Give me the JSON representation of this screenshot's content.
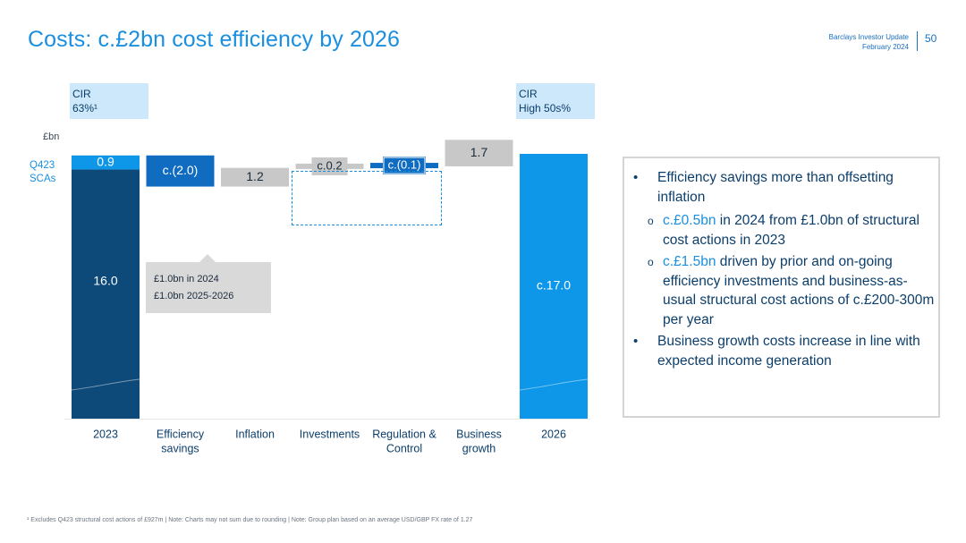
{
  "header": {
    "title": "Costs: c.£2bn cost efficiency by 2026",
    "report_name": "Barclays Investor Update",
    "report_date": "February 2024",
    "page_number": "50"
  },
  "cir_labels": {
    "left_line1": "CIR",
    "left_line2": "63%¹",
    "right_line1": "CIR",
    "right_line2": "High 50s%"
  },
  "unit_label": "£bn",
  "q423_label": [
    "Q423",
    "SCAs"
  ],
  "callout": {
    "line1": "£1.0bn in 2024",
    "line2": "£1.0bn 2025-2026"
  },
  "chart_data": {
    "type": "bar",
    "subtype": "waterfall",
    "unit": "£bn",
    "categories": [
      "2023",
      "Efficiency savings",
      "Inflation",
      "Investments",
      "Regulation & Control",
      "Business growth",
      "2026"
    ],
    "category_lines": [
      [
        "2023"
      ],
      [
        "Efficiency",
        "savings"
      ],
      [
        "Inflation"
      ],
      [
        "Investments"
      ],
      [
        "Regulation &",
        "Control"
      ],
      [
        "Business",
        "growth"
      ],
      [
        "2026"
      ]
    ],
    "bars": [
      {
        "category": "2023",
        "kind": "total",
        "segments": [
          {
            "label": "16.0",
            "value": 16.0,
            "color": "#0d4a7a"
          },
          {
            "label": "0.9",
            "value": 0.9,
            "color": "#0e97e8"
          }
        ]
      },
      {
        "category": "Efficiency savings",
        "kind": "delta",
        "label": "c.(2.0)",
        "value": -2.0,
        "color": "#0f6cc0"
      },
      {
        "category": "Inflation",
        "kind": "delta",
        "label": "1.2",
        "value": 1.2,
        "color": "#c8c8c8"
      },
      {
        "category": "Investments",
        "kind": "delta",
        "label": "c.0.2",
        "value": 0.2,
        "color": "#c8c8c8"
      },
      {
        "category": "Regulation & Control",
        "kind": "delta",
        "label": "c.(0.1)",
        "value": -0.1,
        "color": "#0f6cc0"
      },
      {
        "category": "Business growth",
        "kind": "delta",
        "label": "1.7",
        "value": 1.7,
        "color": "#c8c8c8"
      },
      {
        "category": "2026",
        "kind": "total",
        "segments": [
          {
            "label": "c.17.0",
            "value": 17.0,
            "color": "#0e97e8"
          }
        ]
      }
    ]
  },
  "commentary": {
    "bullet1": "Efficiency savings more than offsetting inflation",
    "sub1_highlight": "c.£0.5bn",
    "sub1_rest": " in 2024 from £1.0bn of structural cost actions in 2023",
    "sub2_highlight": "c.£1.5bn",
    "sub2_rest": " driven by prior and on-going efficiency investments and business-as-usual structural cost actions of c.£200-300m per year",
    "bullet2": "Business growth costs increase in line with expected income generation"
  },
  "footnote": "¹ Excludes Q423 structural cost actions of £927m | Note: Charts may not sum due to rounding | Note: Group plan based on an average USD/GBP FX rate of 1.27",
  "colors": {
    "title_blue": "#1a8fe0",
    "navy": "#0d4a7a",
    "mid_blue": "#0f6cc0",
    "bright_blue": "#0e97e8",
    "grey": "#c8c8c8",
    "pale_blue": "#cde8fa"
  }
}
